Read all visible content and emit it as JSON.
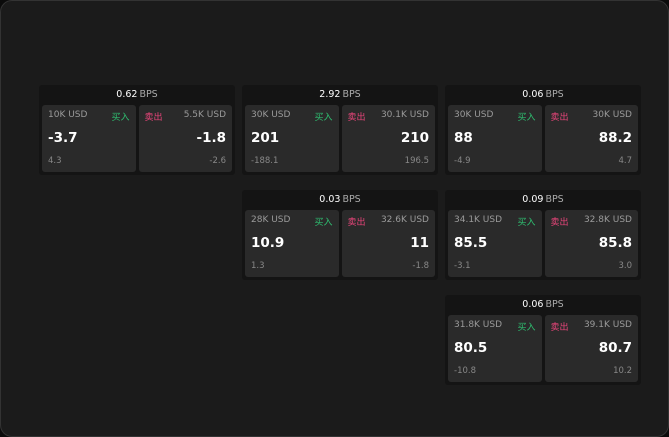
{
  "labels": {
    "buy": "买入",
    "sell": "卖出",
    "bps_unit": "BPS"
  },
  "colors": {
    "buy": "#2fbf71",
    "sell": "#e8457a",
    "background": "#1b1b1b"
  },
  "columns": [
    [
      {
        "spread": "0.62",
        "bid": {
          "size": "10K USD",
          "price": "-3.7",
          "change": "4.3"
        },
        "ask": {
          "size": "5.5K USD",
          "price": "-1.8",
          "change": "-2.6"
        }
      }
    ],
    [
      {
        "spread": "2.92",
        "bid": {
          "size": "30K USD",
          "price": "201",
          "change": "-188.1"
        },
        "ask": {
          "size": "30.1K USD",
          "price": "210",
          "change": "196.5"
        }
      },
      {
        "spread": "0.03",
        "bid": {
          "size": "28K USD",
          "price": "10.9",
          "change": "1.3"
        },
        "ask": {
          "size": "32.6K USD",
          "price": "11",
          "change": "-1.8"
        }
      }
    ],
    [
      {
        "spread": "0.06",
        "bid": {
          "size": "30K USD",
          "price": "88",
          "change": "-4.9"
        },
        "ask": {
          "size": "30K USD",
          "price": "88.2",
          "change": "4.7"
        }
      },
      {
        "spread": "0.09",
        "bid": {
          "size": "34.1K USD",
          "price": "85.5",
          "change": "-3.1"
        },
        "ask": {
          "size": "32.8K USD",
          "price": "85.8",
          "change": "3.0"
        }
      },
      {
        "spread": "0.06",
        "bid": {
          "size": "31.8K USD",
          "price": "80.5",
          "change": "-10.8"
        },
        "ask": {
          "size": "39.1K USD",
          "price": "80.7",
          "change": "10.2"
        }
      }
    ]
  ]
}
